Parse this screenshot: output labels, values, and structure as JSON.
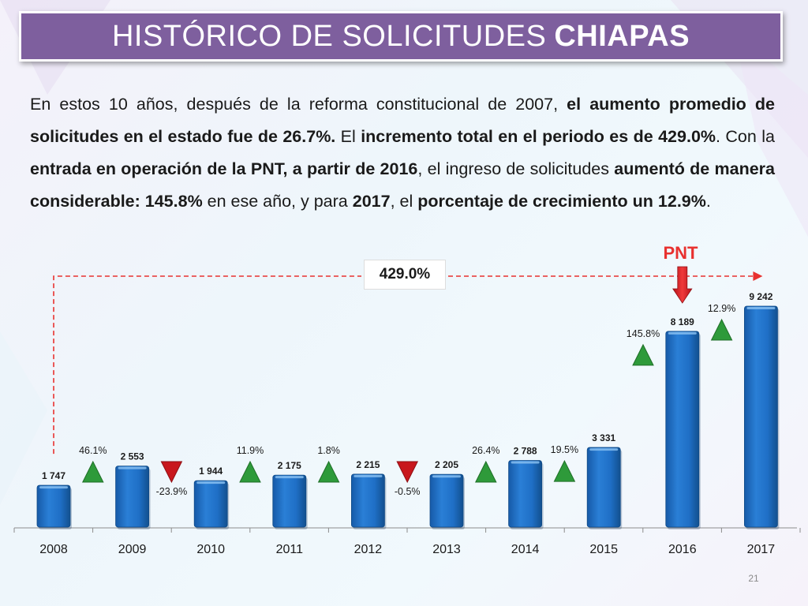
{
  "title": {
    "normal": "HISTÓRICO DE SOLICITUDES",
    "bold": "CHIAPAS"
  },
  "paragraph": [
    {
      "t": "En estos 10 años, después de la reforma constitucional de 2007, ",
      "b": false
    },
    {
      "t": "el aumento promedio de solicitudes en el estado fue de 26.7%.",
      "b": true
    },
    {
      "t": " El ",
      "b": false
    },
    {
      "t": "incremento total en el periodo es de 429.0%",
      "b": true
    },
    {
      "t": ". Con la ",
      "b": false
    },
    {
      "t": "entrada en operación de la PNT, a partir de 2016",
      "b": true
    },
    {
      "t": ", el ingreso de solicitudes ",
      "b": false
    },
    {
      "t": "aumentó de manera considerable: 145.8%",
      "b": true
    },
    {
      "t": " en ese año, y para ",
      "b": false
    },
    {
      "t": "2017",
      "b": true
    },
    {
      "t": ", el ",
      "b": false
    },
    {
      "t": "porcentaje de crecimiento un 12.9%",
      "b": true
    },
    {
      "t": ".",
      "b": false
    }
  ],
  "pnt_label": "PNT",
  "total_change_label": "429.0%",
  "page_number": "21",
  "colors": {
    "bar": "#1f6fc6",
    "bar_light": "#5aa2e6",
    "up": "#2e9a3a",
    "down": "#c8171d",
    "pnt": "#e8312f",
    "title_bg": "#7e5f9e"
  },
  "chart_data": {
    "type": "bar",
    "categories": [
      "2008",
      "2009",
      "2010",
      "2011",
      "2012",
      "2013",
      "2014",
      "2015",
      "2016",
      "2017"
    ],
    "values": [
      1747,
      2553,
      1944,
      2175,
      2215,
      2205,
      2788,
      3331,
      8189,
      9242
    ],
    "value_labels": [
      "1 747",
      "2 553",
      "1 944",
      "2 175",
      "2 215",
      "2 205",
      "2 788",
      "3 331",
      "8 189",
      "9 242"
    ],
    "changes": [
      {
        "label": "46.1%",
        "dir": "up"
      },
      {
        "label": "-23.9%",
        "dir": "down"
      },
      {
        "label": "11.9%",
        "dir": "up"
      },
      {
        "label": "1.8%",
        "dir": "up"
      },
      {
        "label": "-0.5%",
        "dir": "down"
      },
      {
        "label": "26.4%",
        "dir": "up"
      },
      {
        "label": "19.5%",
        "dir": "up"
      },
      {
        "label": "145.8%",
        "dir": "up"
      },
      {
        "label": "12.9%",
        "dir": "up"
      }
    ],
    "title": "",
    "xlabel": "",
    "ylabel": "",
    "ylim": [
      0,
      9242
    ],
    "grid": false,
    "legend": "none"
  }
}
